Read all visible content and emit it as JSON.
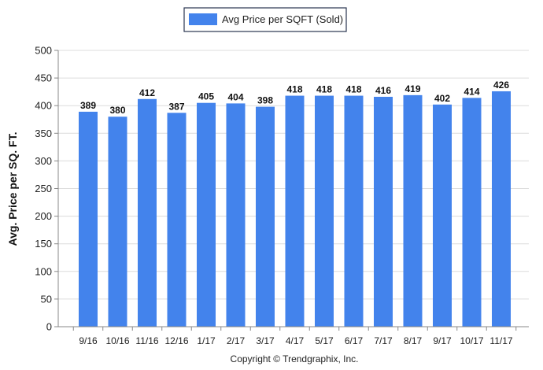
{
  "chart_data": {
    "type": "bar",
    "categories": [
      "9/16",
      "10/16",
      "11/16",
      "12/16",
      "1/17",
      "2/17",
      "3/17",
      "4/17",
      "5/17",
      "6/17",
      "7/17",
      "8/17",
      "9/17",
      "10/17",
      "11/17"
    ],
    "series": [
      {
        "name": "Avg Price per SQFT (Sold)",
        "values": [
          389,
          380,
          412,
          387,
          405,
          404,
          398,
          418,
          418,
          418,
          416,
          419,
          402,
          414,
          426
        ],
        "color": "#4383ec"
      }
    ],
    "ylabel": "Avg. Price per SQ. FT.",
    "xlabel": "",
    "ylim": [
      0,
      500
    ],
    "yticks": [
      0,
      50,
      100,
      150,
      200,
      250,
      300,
      350,
      400,
      450,
      500
    ],
    "grid": true,
    "legend_position": "top-center",
    "data_labels": true
  },
  "footer": {
    "copyright": "Copyright © Trendgraphix, Inc."
  }
}
